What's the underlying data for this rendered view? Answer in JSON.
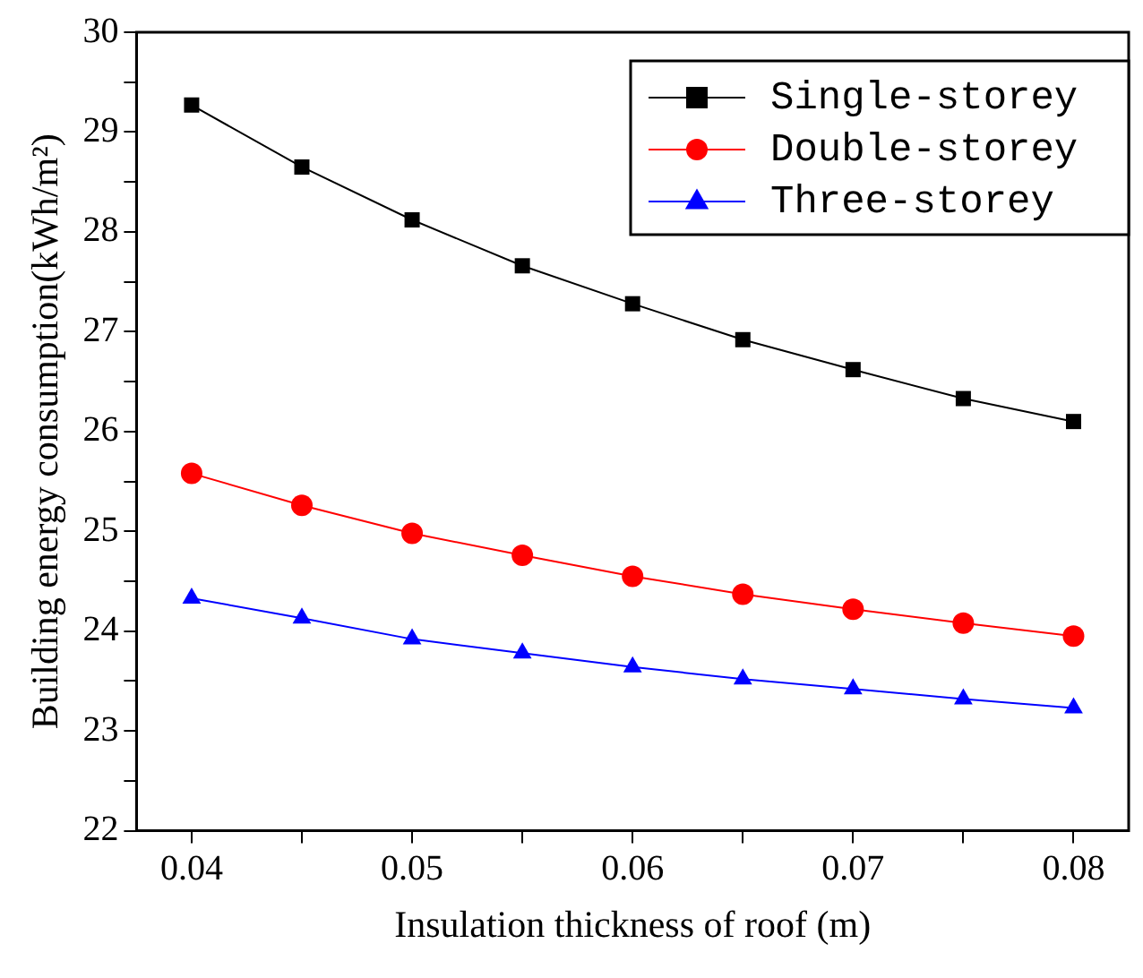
{
  "chart_data": {
    "type": "line",
    "xlabel": "Insulation thickness of roof (m)",
    "ylabel": "Building energy consumption(kWh/m²)",
    "x": [
      0.04,
      0.045,
      0.05,
      0.055,
      0.06,
      0.065,
      0.07,
      0.075,
      0.08
    ],
    "series": [
      {
        "name": "Single-storey",
        "color": "#000000",
        "marker": "square",
        "values": [
          29.27,
          28.65,
          28.12,
          27.66,
          27.28,
          26.92,
          26.62,
          26.33,
          26.1
        ]
      },
      {
        "name": "Double-storey",
        "color": "#ff0000",
        "marker": "circle",
        "values": [
          25.58,
          25.26,
          24.98,
          24.76,
          24.55,
          24.37,
          24.22,
          24.08,
          23.95
        ]
      },
      {
        "name": "Three-storey",
        "color": "#0000ff",
        "marker": "triangle",
        "values": [
          24.33,
          24.13,
          23.92,
          23.78,
          23.64,
          23.52,
          23.42,
          23.32,
          23.23
        ]
      }
    ],
    "xlim": [
      0.0375,
      0.0825
    ],
    "xticks": [
      0.04,
      {
        "value": 0.045,
        "label": null
      },
      0.05,
      {
        "value": 0.055,
        "label": null
      },
      0.06,
      {
        "value": 0.065,
        "label": null
      },
      0.07,
      {
        "value": 0.075,
        "label": null
      },
      0.08
    ],
    "ylim": [
      22,
      30
    ],
    "yticks": [
      22,
      {
        "value": 22.5,
        "label": null
      },
      23,
      {
        "value": 23.5,
        "label": null
      },
      24,
      {
        "value": 24.5,
        "label": null
      },
      25,
      {
        "value": 25.5,
        "label": null
      },
      26,
      {
        "value": 26.5,
        "label": null
      },
      27,
      {
        "value": 27.5,
        "label": null
      },
      28,
      {
        "value": 28.5,
        "label": null
      },
      29,
      {
        "value": 29.5,
        "label": null
      },
      30
    ],
    "grid": false,
    "legend": "top right",
    "line_style": "solid"
  }
}
